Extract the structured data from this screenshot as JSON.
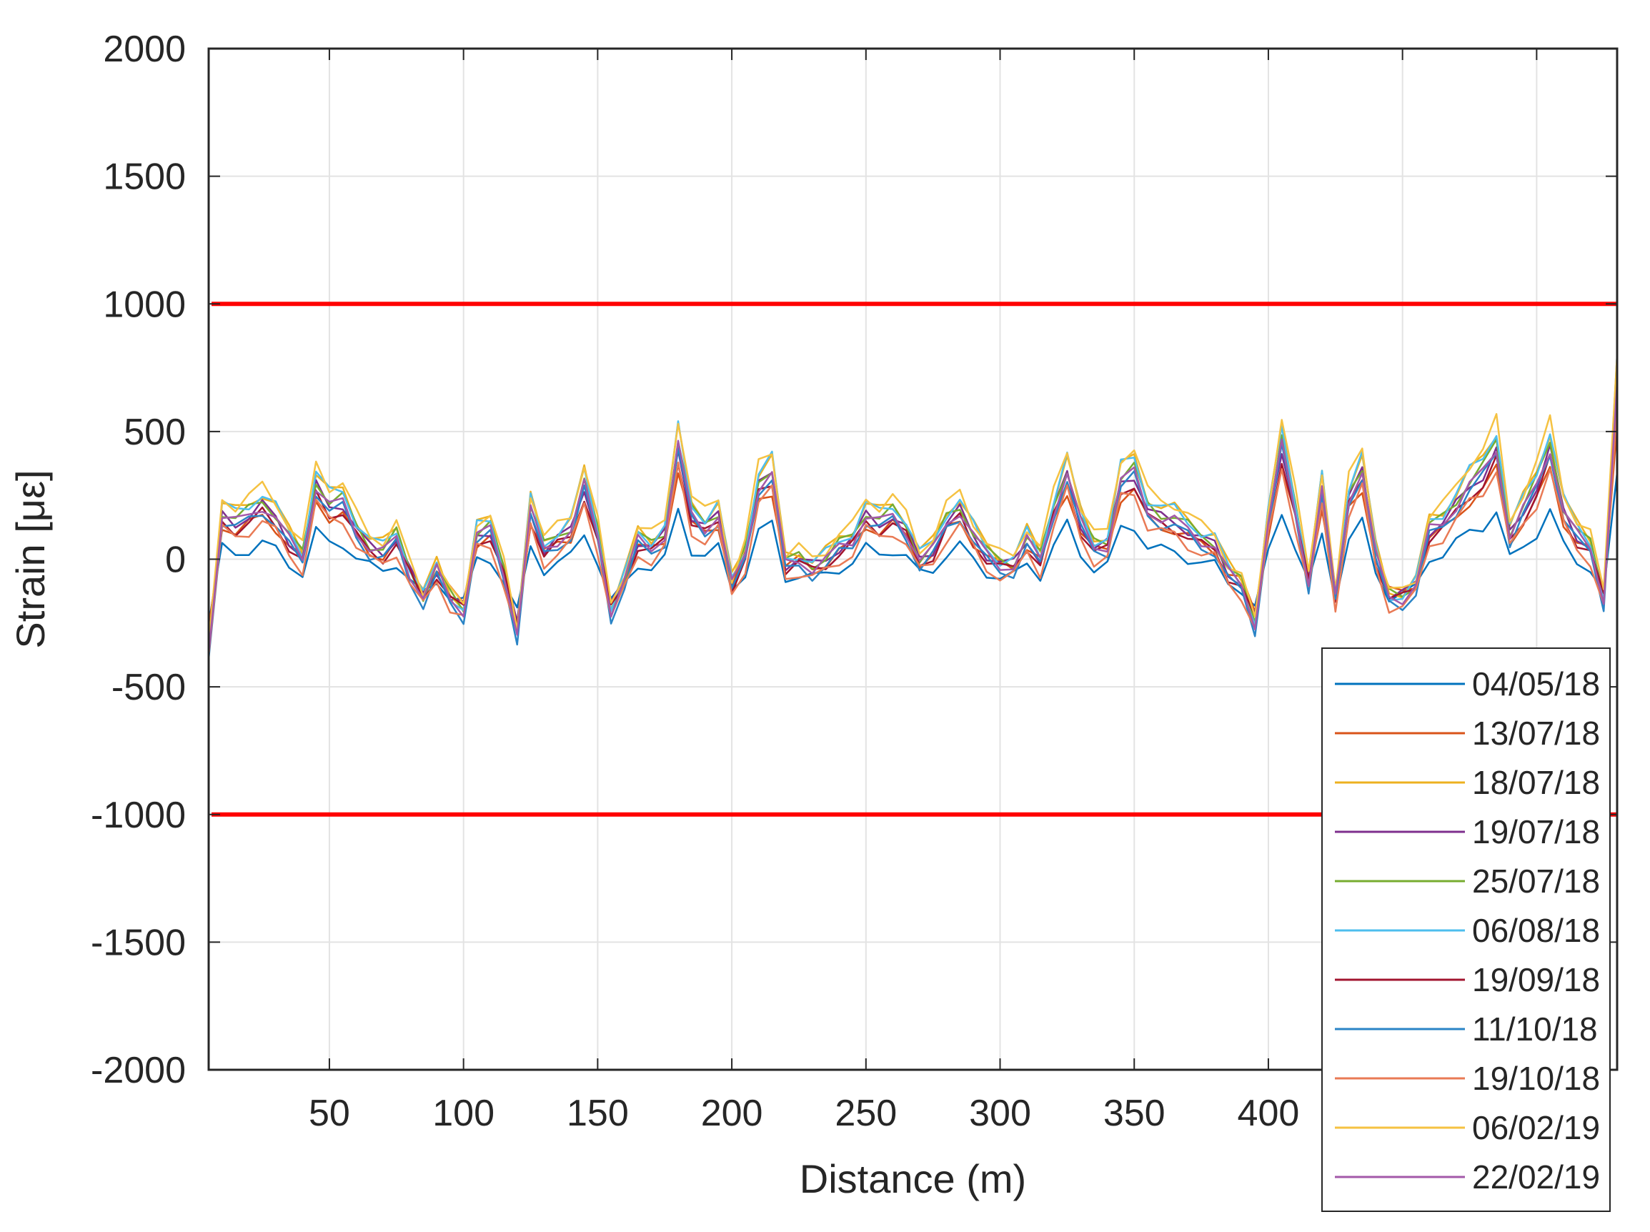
{
  "chart_data": {
    "type": "line",
    "title": "",
    "xlabel": "Distance (m)",
    "ylabel": "Strain [με]",
    "xlim": [
      5,
      530
    ],
    "ylim": [
      -2000,
      2000
    ],
    "xticks": [
      50,
      100,
      150,
      200,
      250,
      300,
      350,
      400,
      450,
      500
    ],
    "xtick_labels": [
      "50",
      "100",
      "150",
      "200",
      "250",
      "300",
      "350",
      "400",
      "",
      ""
    ],
    "yticks": [
      -2000,
      -1500,
      -1000,
      -500,
      0,
      500,
      1000,
      1500,
      2000
    ],
    "ytick_labels": [
      "-2000",
      "-1500",
      "-1000",
      "-500",
      "0",
      "500",
      "1000",
      "1500",
      "2000"
    ],
    "grid": true,
    "legend_position": "bottom-right",
    "thresholds": [
      {
        "value": 1000,
        "color": "#ff0000"
      },
      {
        "value": -1000,
        "color": "#ff0000"
      }
    ],
    "baseline": {
      "x": [
        5,
        10,
        15,
        20,
        25,
        30,
        35,
        40,
        45,
        50,
        55,
        60,
        65,
        70,
        75,
        80,
        85,
        90,
        95,
        100,
        105,
        110,
        115,
        120,
        125,
        130,
        135,
        140,
        145,
        150,
        155,
        160,
        165,
        170,
        175,
        180,
        185,
        190,
        195,
        200,
        205,
        210,
        215,
        220,
        225,
        230,
        235,
        240,
        245,
        250,
        255,
        260,
        265,
        270,
        275,
        280,
        285,
        290,
        295,
        300,
        305,
        310,
        315,
        320,
        325,
        330,
        335,
        340,
        345,
        350,
        355,
        360,
        365,
        370,
        375,
        380,
        385,
        390,
        395,
        400,
        405,
        410,
        415,
        420,
        425,
        430,
        435,
        440,
        445,
        450,
        455,
        460,
        465,
        470,
        475,
        480,
        485,
        490,
        495,
        500,
        505,
        510,
        515,
        520,
        525,
        530
      ],
      "y": [
        -350,
        180,
        150,
        180,
        220,
        170,
        80,
        10,
        300,
        220,
        230,
        120,
        50,
        30,
        90,
        -50,
        -150,
        -40,
        -150,
        -200,
        100,
        120,
        -50,
        -280,
        200,
        40,
        80,
        120,
        300,
        100,
        -200,
        -80,
        80,
        50,
        100,
        460,
        180,
        130,
        180,
        -100,
        20,
        300,
        350,
        -20,
        0,
        -30,
        0,
        50,
        80,
        180,
        150,
        180,
        120,
        0,
        40,
        150,
        200,
        100,
        20,
        -20,
        -20,
        80,
        0,
        200,
        350,
        150,
        50,
        60,
        320,
        350,
        200,
        170,
        160,
        120,
        80,
        60,
        -50,
        -100,
        -250,
        150,
        460,
        200,
        -80,
        280,
        -150,
        250,
        360,
        20,
        -150,
        -150,
        -100,
        120,
        150,
        220,
        300,
        350,
        450,
        100,
        200,
        300,
        450,
        200,
        100,
        50,
        -150,
        700
      ]
    },
    "series": [
      {
        "name": "04/05/18",
        "color": "#0072bd",
        "offset": -60,
        "scale": 0.55
      },
      {
        "name": "13/07/18",
        "color": "#d95319",
        "offset": -10,
        "scale": 0.8
      },
      {
        "name": "18/07/18",
        "color": "#edb120",
        "offset": 30,
        "scale": 1.05
      },
      {
        "name": "19/07/18",
        "color": "#7e2f8e",
        "offset": 0,
        "scale": 0.95
      },
      {
        "name": "25/07/18",
        "color": "#77ac30",
        "offset": 10,
        "scale": 1.0
      },
      {
        "name": "06/08/18",
        "color": "#4dbeee",
        "offset": 20,
        "scale": 1.08
      },
      {
        "name": "19/09/18",
        "color": "#a2142f",
        "offset": -20,
        "scale": 0.9
      },
      {
        "name": "11/10/18",
        "color": "#2a84c6",
        "offset": -30,
        "scale": 1.0
      },
      {
        "name": "19/10/18",
        "color": "#e97a55",
        "offset": -50,
        "scale": 0.9
      },
      {
        "name": "06/02/19",
        "color": "#f5c242",
        "offset": 40,
        "scale": 1.12
      },
      {
        "name": "22/02/19",
        "color": "#a359a9",
        "offset": -5,
        "scale": 0.98
      }
    ]
  }
}
